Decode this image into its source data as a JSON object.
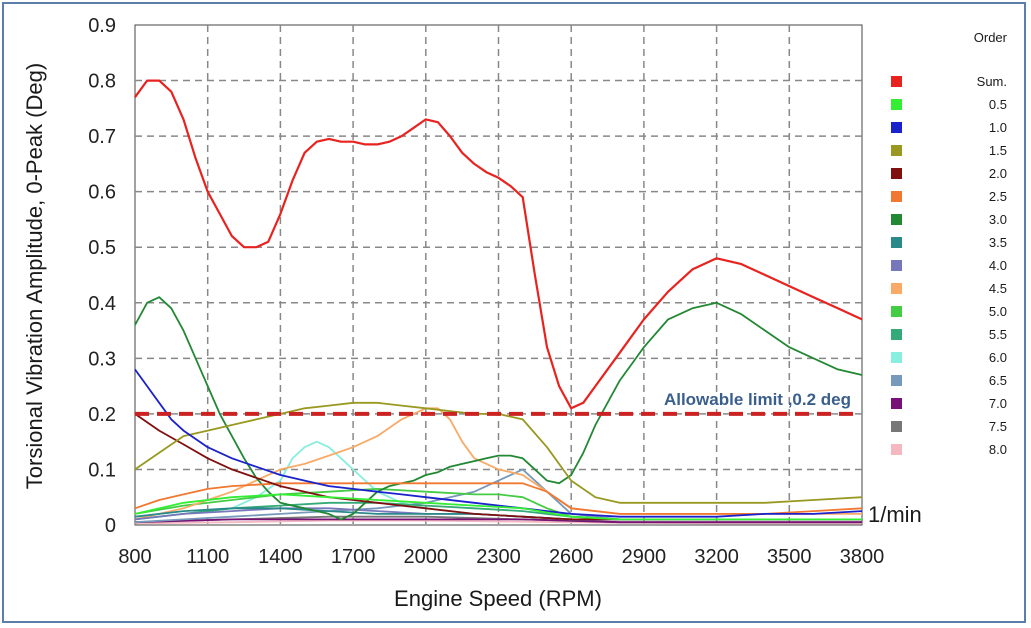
{
  "chart_data": {
    "type": "line",
    "xlabel": "Engine Speed (RPM)",
    "ylabel": "Torsional Vibration Amplitude, 0-Peak (Deg)",
    "x_unit": "1/min",
    "xlim": [
      800,
      3800
    ],
    "ylim": [
      0,
      0.9
    ],
    "x_ticks": [
      "800",
      "1100",
      "1400",
      "1700",
      "2000",
      "2300",
      "2600",
      "2900",
      "3200",
      "3500",
      "3800"
    ],
    "y_ticks": [
      "0",
      "0.1",
      "0.2",
      "0.3",
      "0.4",
      "0.5",
      "0.6",
      "0.7",
      "0.8",
      "0.9"
    ],
    "grid": true,
    "legend_title": "Order",
    "legend_position": "right",
    "annotation": "Allowable limit ,0.2 deg",
    "limit_line": {
      "y": 0.2,
      "color": "#cc2222"
    },
    "series": [
      {
        "name": "Sum.",
        "color": "#e8231f",
        "x": [
          800,
          850,
          900,
          950,
          1000,
          1050,
          1100,
          1150,
          1200,
          1250,
          1300,
          1350,
          1400,
          1450,
          1500,
          1550,
          1600,
          1650,
          1700,
          1750,
          1800,
          1850,
          1900,
          1950,
          2000,
          2050,
          2100,
          2150,
          2200,
          2250,
          2300,
          2350,
          2400,
          2450,
          2500,
          2550,
          2600,
          2650,
          2700,
          2800,
          2900,
          3000,
          3100,
          3200,
          3300,
          3400,
          3500,
          3600,
          3700,
          3800
        ],
        "y": [
          0.77,
          0.8,
          0.8,
          0.78,
          0.73,
          0.66,
          0.6,
          0.56,
          0.52,
          0.5,
          0.5,
          0.51,
          0.56,
          0.62,
          0.67,
          0.69,
          0.695,
          0.69,
          0.69,
          0.685,
          0.685,
          0.69,
          0.7,
          0.715,
          0.73,
          0.725,
          0.7,
          0.67,
          0.65,
          0.635,
          0.625,
          0.61,
          0.59,
          0.45,
          0.32,
          0.25,
          0.21,
          0.22,
          0.25,
          0.31,
          0.37,
          0.42,
          0.46,
          0.48,
          0.47,
          0.45,
          0.43,
          0.41,
          0.39,
          0.37
        ]
      },
      {
        "name": "0.5",
        "color": "#33ee33",
        "x": [
          800,
          1000,
          1200,
          1400,
          1600,
          1800,
          2000,
          2200,
          2400,
          2600,
          2800,
          3000,
          3400,
          3800
        ],
        "y": [
          0.02,
          0.04,
          0.05,
          0.055,
          0.05,
          0.045,
          0.04,
          0.035,
          0.03,
          0.015,
          0.01,
          0.01,
          0.01,
          0.01
        ]
      },
      {
        "name": "1.0",
        "color": "#1a22cc",
        "x": [
          800,
          850,
          900,
          950,
          1000,
          1100,
          1200,
          1300,
          1400,
          1500,
          1600,
          1700,
          1800,
          1900,
          2000,
          2200,
          2400,
          2600,
          2800,
          3000,
          3200,
          3400,
          3600,
          3800
        ],
        "y": [
          0.28,
          0.25,
          0.22,
          0.19,
          0.17,
          0.14,
          0.12,
          0.105,
          0.09,
          0.08,
          0.07,
          0.065,
          0.06,
          0.055,
          0.05,
          0.04,
          0.03,
          0.02,
          0.015,
          0.015,
          0.015,
          0.02,
          0.02,
          0.025
        ]
      },
      {
        "name": "1.5",
        "color": "#999922",
        "x": [
          800,
          900,
          1000,
          1100,
          1200,
          1300,
          1400,
          1500,
          1600,
          1700,
          1800,
          1900,
          2000,
          2100,
          2200,
          2300,
          2400,
          2500,
          2600,
          2700,
          2800,
          3000,
          3200,
          3400,
          3600,
          3800
        ],
        "y": [
          0.1,
          0.13,
          0.16,
          0.17,
          0.18,
          0.19,
          0.2,
          0.21,
          0.215,
          0.22,
          0.22,
          0.215,
          0.21,
          0.205,
          0.2,
          0.2,
          0.19,
          0.14,
          0.08,
          0.05,
          0.04,
          0.04,
          0.04,
          0.04,
          0.045,
          0.05
        ]
      },
      {
        "name": "2.0",
        "color": "#801010",
        "x": [
          800,
          900,
          1000,
          1100,
          1200,
          1300,
          1400,
          1500,
          1600,
          1700,
          1800,
          1900,
          2000,
          2200,
          2400,
          2600,
          2800,
          3000,
          3200,
          3400,
          3600,
          3800
        ],
        "y": [
          0.2,
          0.17,
          0.145,
          0.12,
          0.1,
          0.085,
          0.07,
          0.06,
          0.05,
          0.045,
          0.04,
          0.035,
          0.03,
          0.02,
          0.015,
          0.01,
          0.01,
          0.01,
          0.01,
          0.01,
          0.01,
          0.01
        ]
      },
      {
        "name": "2.5",
        "color": "#f07830",
        "x": [
          800,
          900,
          1000,
          1100,
          1200,
          1400,
          1600,
          1800,
          2000,
          2200,
          2300,
          2400,
          2500,
          2600,
          2800,
          3000,
          3200,
          3400,
          3600,
          3800
        ],
        "y": [
          0.03,
          0.045,
          0.055,
          0.065,
          0.07,
          0.075,
          0.075,
          0.075,
          0.075,
          0.075,
          0.075,
          0.075,
          0.06,
          0.03,
          0.02,
          0.02,
          0.02,
          0.02,
          0.025,
          0.03
        ]
      },
      {
        "name": "3.0",
        "color": "#228833",
        "x": [
          800,
          850,
          900,
          950,
          1000,
          1050,
          1100,
          1150,
          1200,
          1250,
          1300,
          1350,
          1400,
          1450,
          1500,
          1550,
          1600,
          1650,
          1700,
          1750,
          1800,
          1850,
          1900,
          1950,
          2000,
          2050,
          2100,
          2150,
          2200,
          2250,
          2300,
          2350,
          2400,
          2450,
          2500,
          2550,
          2600,
          2650,
          2700,
          2800,
          2900,
          3000,
          3100,
          3200,
          3300,
          3400,
          3500,
          3600,
          3700,
          3800
        ],
        "y": [
          0.36,
          0.4,
          0.41,
          0.39,
          0.35,
          0.3,
          0.25,
          0.2,
          0.16,
          0.12,
          0.085,
          0.06,
          0.04,
          0.035,
          0.03,
          0.025,
          0.02,
          0.01,
          0.02,
          0.04,
          0.06,
          0.07,
          0.075,
          0.08,
          0.09,
          0.095,
          0.105,
          0.11,
          0.115,
          0.12,
          0.125,
          0.125,
          0.12,
          0.1,
          0.08,
          0.075,
          0.09,
          0.13,
          0.18,
          0.26,
          0.32,
          0.37,
          0.39,
          0.4,
          0.38,
          0.35,
          0.32,
          0.3,
          0.28,
          0.27
        ]
      },
      {
        "name": "3.5",
        "color": "#2a8a8a",
        "x": [
          800,
          1000,
          1200,
          1400,
          1600,
          1800,
          2000,
          2200,
          2400,
          2600,
          2800,
          3000,
          3400,
          3800
        ],
        "y": [
          0.015,
          0.025,
          0.03,
          0.03,
          0.025,
          0.02,
          0.02,
          0.02,
          0.015,
          0.01,
          0.01,
          0.01,
          0.01,
          0.01
        ]
      },
      {
        "name": "4.0",
        "color": "#7777bb",
        "x": [
          800,
          1000,
          1200,
          1400,
          1600,
          1800,
          2000,
          2200,
          2400,
          2600,
          2800,
          3000,
          3400,
          3800
        ],
        "y": [
          0.01,
          0.02,
          0.025,
          0.03,
          0.03,
          0.025,
          0.02,
          0.02,
          0.015,
          0.01,
          0.01,
          0.01,
          0.01,
          0.01
        ]
      },
      {
        "name": "4.5",
        "color": "#f8aa66",
        "x": [
          800,
          1000,
          1200,
          1400,
          1500,
          1600,
          1700,
          1800,
          1900,
          2000,
          2050,
          2100,
          2150,
          2200,
          2300,
          2400,
          2500,
          2600,
          2800,
          3000,
          3400,
          3800
        ],
        "y": [
          0.01,
          0.03,
          0.06,
          0.1,
          0.11,
          0.125,
          0.14,
          0.16,
          0.19,
          0.21,
          0.21,
          0.19,
          0.15,
          0.12,
          0.1,
          0.09,
          0.06,
          0.03,
          0.02,
          0.02,
          0.02,
          0.02
        ]
      },
      {
        "name": "5.0",
        "color": "#44cc44",
        "x": [
          800,
          1000,
          1200,
          1400,
          1600,
          1800,
          2000,
          2200,
          2300,
          2400,
          2500,
          2600,
          2800,
          3000,
          3400,
          3800
        ],
        "y": [
          0.02,
          0.035,
          0.045,
          0.055,
          0.06,
          0.065,
          0.06,
          0.055,
          0.055,
          0.05,
          0.03,
          0.015,
          0.01,
          0.01,
          0.01,
          0.01
        ]
      },
      {
        "name": "5.5",
        "color": "#33aa77",
        "x": [
          800,
          1000,
          1200,
          1400,
          1600,
          1800,
          2000,
          2200,
          2400,
          2600,
          2800,
          3000,
          3400,
          3800
        ],
        "y": [
          0.01,
          0.02,
          0.03,
          0.035,
          0.04,
          0.04,
          0.035,
          0.03,
          0.025,
          0.015,
          0.01,
          0.01,
          0.01,
          0.01
        ]
      },
      {
        "name": "6.0",
        "color": "#88eedd",
        "x": [
          800,
          1200,
          1300,
          1400,
          1450,
          1500,
          1550,
          1600,
          1650,
          1700,
          1800,
          1900,
          2000,
          2200,
          2400,
          2600,
          2800,
          3200,
          3800
        ],
        "y": [
          0.01,
          0.03,
          0.05,
          0.08,
          0.12,
          0.14,
          0.15,
          0.14,
          0.12,
          0.1,
          0.06,
          0.04,
          0.03,
          0.02,
          0.015,
          0.01,
          0.01,
          0.01,
          0.01
        ]
      },
      {
        "name": "6.5",
        "color": "#7799bb",
        "x": [
          800,
          1000,
          1200,
          1400,
          1600,
          1800,
          2000,
          2200,
          2300,
          2400,
          2500,
          2600,
          2800,
          3000,
          3400,
          3800
        ],
        "y": [
          0.005,
          0.01,
          0.015,
          0.02,
          0.025,
          0.03,
          0.04,
          0.06,
          0.08,
          0.1,
          0.06,
          0.02,
          0.01,
          0.01,
          0.01,
          0.01
        ]
      },
      {
        "name": "7.0",
        "color": "#771177",
        "x": [
          800,
          1200,
          1600,
          2000,
          2400,
          2800,
          3200,
          3800
        ],
        "y": [
          0.005,
          0.01,
          0.01,
          0.01,
          0.01,
          0.005,
          0.005,
          0.005
        ]
      },
      {
        "name": "7.5",
        "color": "#777777",
        "x": [
          800,
          1200,
          1600,
          2000,
          2400,
          2800,
          3200,
          3800
        ],
        "y": [
          0.005,
          0.01,
          0.015,
          0.015,
          0.01,
          0.005,
          0.005,
          0.005
        ]
      },
      {
        "name": "8.0",
        "color": "#f4b8c0",
        "x": [
          800,
          1200,
          1600,
          2000,
          2400,
          2800,
          3200,
          3800
        ],
        "y": [
          0.003,
          0.005,
          0.008,
          0.008,
          0.006,
          0.004,
          0.003,
          0.003
        ]
      }
    ]
  }
}
